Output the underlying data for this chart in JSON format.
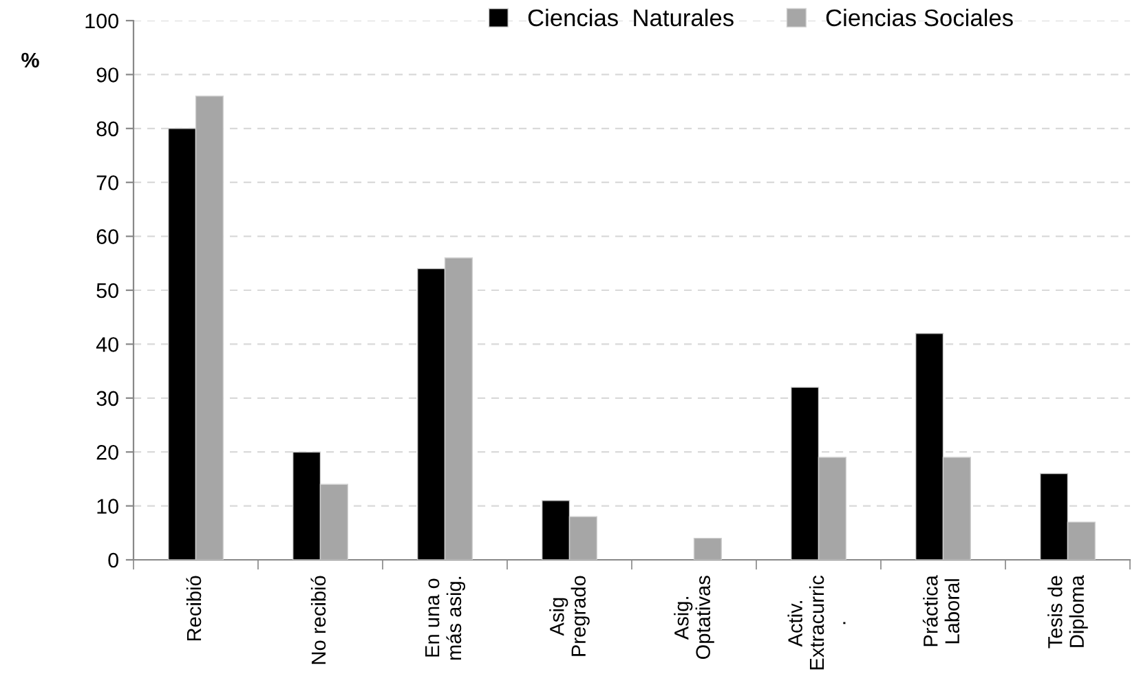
{
  "chart_data": {
    "type": "bar",
    "ylabel": "%",
    "categories": [
      "Recibió",
      "No recibió",
      "En una o\nmás asig.",
      "Asig\nPregrado",
      "Asig.\nOptativas",
      "Activ.\nExtracurric\n.",
      "Práctica\nLaboral",
      "Tesis de\nDiploma"
    ],
    "series": [
      {
        "name": "Ciencias  Naturales",
        "color": "#000000",
        "values": [
          80,
          20,
          54,
          11,
          null,
          32,
          42,
          16
        ]
      },
      {
        "name": "Ciencias Sociales",
        "color": "#a6a6a6",
        "values": [
          86,
          14,
          56,
          8,
          4,
          19,
          19,
          7
        ]
      }
    ],
    "ylim": [
      0,
      100
    ],
    "yticks": [
      0,
      10,
      20,
      30,
      40,
      50,
      60,
      70,
      80,
      90,
      100
    ],
    "grid": "y",
    "legend": "top"
  }
}
